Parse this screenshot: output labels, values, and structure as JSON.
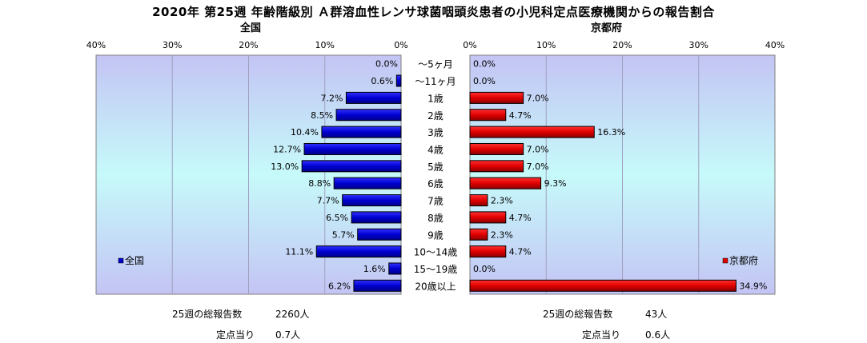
{
  "title": "2020年 第25週 年齢階級別 Ａ群溶血性レンサ球菌咽頭炎患者の小児科定点医療機関からの報告割合",
  "chart_data": [
    {
      "type": "bar",
      "orientation": "horizontal",
      "direction": "right-to-left",
      "subtitle": "全国",
      "legend": {
        "label": "全国",
        "position": "bottom-left"
      },
      "color": "#0000cc",
      "xlim": [
        0,
        40
      ],
      "tick_labels": [
        "40%",
        "30%",
        "20%",
        "10%",
        "0%"
      ],
      "grid": true,
      "categories": [
        "〜5ヶ月",
        "〜11ヶ月",
        "1歳",
        "2歳",
        "3歳",
        "4歳",
        "5歳",
        "6歳",
        "7歳",
        "8歳",
        "9歳",
        "10〜14歳",
        "15〜19歳",
        "20歳以上"
      ],
      "values": [
        0.0,
        0.6,
        7.2,
        8.5,
        10.4,
        12.7,
        13.0,
        8.8,
        7.7,
        6.5,
        5.7,
        11.1,
        1.6,
        6.2
      ],
      "data_labels": [
        "0.0%",
        "0.6%",
        "7.2%",
        "8.5%",
        "10.4%",
        "12.7%",
        "13.0%",
        "8.8%",
        "7.7%",
        "6.5%",
        "5.7%",
        "11.1%",
        "1.6%",
        "6.2%"
      ]
    },
    {
      "type": "bar",
      "orientation": "horizontal",
      "direction": "left-to-right",
      "subtitle": "京都府",
      "legend": {
        "label": "京都府",
        "position": "bottom-right"
      },
      "color": "#dd0000",
      "xlim": [
        0,
        40
      ],
      "tick_labels": [
        "0%",
        "10%",
        "20%",
        "30%",
        "40%"
      ],
      "grid": true,
      "categories": [
        "〜5ヶ月",
        "〜11ヶ月",
        "1歳",
        "2歳",
        "3歳",
        "4歳",
        "5歳",
        "6歳",
        "7歳",
        "8歳",
        "9歳",
        "10〜14歳",
        "15〜19歳",
        "20歳以上"
      ],
      "values": [
        0.0,
        0.0,
        7.0,
        4.7,
        16.3,
        7.0,
        7.0,
        9.3,
        2.3,
        4.7,
        2.3,
        4.7,
        0.0,
        34.9
      ],
      "data_labels": [
        "0.0%",
        "0.0%",
        "7.0%",
        "4.7%",
        "16.3%",
        "7.0%",
        "7.0%",
        "9.3%",
        "2.3%",
        "4.7%",
        "2.3%",
        "4.7%",
        "0.0%",
        "34.9%"
      ]
    }
  ],
  "stats": {
    "national": {
      "total_label": "25週の総報告数",
      "total_value": "2260人",
      "per_label": "定点当り",
      "per_value": "0.7人"
    },
    "kyoto": {
      "total_label": "25週の総報告数",
      "total_value": "43人",
      "per_label": "定点当り",
      "per_value": "0.6人"
    }
  }
}
